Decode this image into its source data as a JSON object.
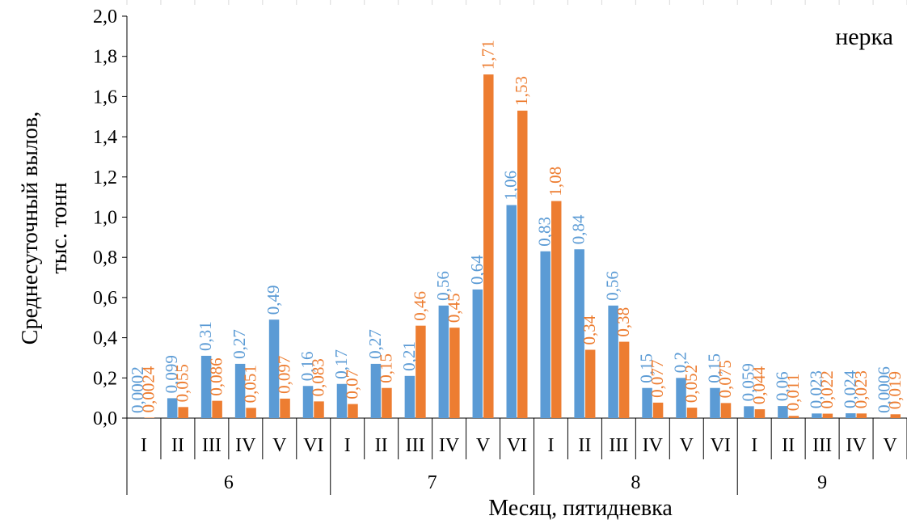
{
  "chart_data": {
    "type": "bar",
    "title": "нерка",
    "xlabel": "Месяц, пятидневка",
    "ylabel_lines": [
      "Среднесуточный  вылов,",
      "тыс. тонн"
    ],
    "ylim": [
      0,
      2.0
    ],
    "y_ticks": [
      "0,0",
      "0,2",
      "0,4",
      "0,6",
      "0,8",
      "1,0",
      "1,2",
      "1,4",
      "1,6",
      "1,8",
      "2,0"
    ],
    "grid": false,
    "legend": "none",
    "categories": [
      "I",
      "II",
      "III",
      "IV",
      "V",
      "VI",
      "I",
      "II",
      "III",
      "IV",
      "V",
      "VI",
      "I",
      "II",
      "III",
      "IV",
      "V",
      "VI",
      "I",
      "II",
      "III",
      "IV",
      "V"
    ],
    "months": [
      {
        "label": "6",
        "count": 6
      },
      {
        "label": "7",
        "count": 6
      },
      {
        "label": "8",
        "count": 6
      },
      {
        "label": "9",
        "count": 5
      }
    ],
    "series": [
      {
        "color": "#5B9BD5",
        "values": [
          0.0002,
          0.099,
          0.31,
          0.27,
          0.49,
          0.16,
          0.17,
          0.27,
          0.21,
          0.56,
          0.64,
          1.06,
          0.83,
          0.84,
          0.56,
          0.15,
          0.2,
          0.15,
          0.059,
          0.06,
          0.023,
          0.024,
          0.0006
        ],
        "labels": [
          "0,0002",
          "0,099",
          "0,31",
          "0,27",
          "0,49",
          "0,16",
          "0,17",
          "0,27",
          "0,21",
          "0,56",
          "0,64",
          "1,06",
          "0,83",
          "0,84",
          "0,56",
          "0,15",
          "0,2",
          "0,15",
          "0,059",
          "0,06",
          "0,023",
          "0,024",
          "0,0006"
        ]
      },
      {
        "color": "#ED7D31",
        "values": [
          0.0024,
          0.055,
          0.086,
          0.051,
          0.097,
          0.083,
          0.07,
          0.15,
          0.46,
          0.45,
          1.71,
          1.53,
          1.08,
          0.34,
          0.38,
          0.077,
          0.052,
          0.075,
          0.044,
          0.011,
          0.022,
          0.023,
          0.019
        ],
        "labels": [
          "0,0024",
          "0,055",
          "0,086",
          "0,051",
          "0,097",
          "0,083",
          "0,07",
          "0,15",
          "0,46",
          "0,45",
          "1,71",
          "1,53",
          "1,08",
          "0,34",
          "0,38",
          "0,077",
          "0,052",
          "0,075",
          "0,044",
          "0,011",
          "0,022",
          "0,023",
          "0,019"
        ]
      }
    ]
  }
}
